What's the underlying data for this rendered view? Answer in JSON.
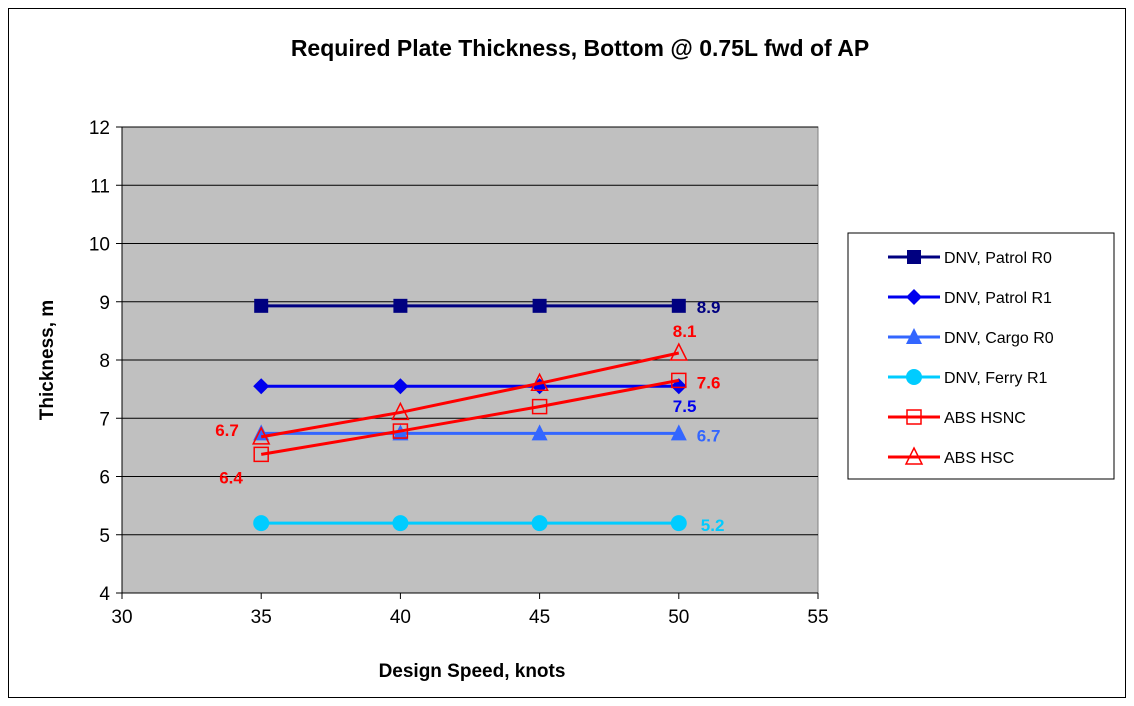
{
  "chart_data": {
    "type": "line",
    "title": "Required Plate Thickness, Bottom @ 0.75L fwd of AP",
    "xlabel": "Design Speed, knots",
    "ylabel": "Thickness, m",
    "xlim": [
      30,
      55
    ],
    "ylim": [
      4,
      12
    ],
    "xticks": [
      30,
      35,
      40,
      45,
      50,
      55
    ],
    "yticks": [
      4,
      5,
      6,
      7,
      8,
      9,
      10,
      11,
      12
    ],
    "grid": "horizontal",
    "plot_background": "#c0c0c0",
    "legend_position": "right",
    "x": [
      35,
      40,
      45,
      50
    ],
    "series": [
      {
        "name": "DNV, Patrol R0",
        "color": "#000080",
        "marker": "square",
        "values": [
          8.93,
          8.93,
          8.93,
          8.93
        ]
      },
      {
        "name": "DNV, Patrol R1",
        "color": "#0000ee",
        "marker": "diamond",
        "values": [
          7.55,
          7.55,
          7.55,
          7.55
        ]
      },
      {
        "name": "DNV, Cargo R0",
        "color": "#3366ff",
        "marker": "triangle",
        "values": [
          6.74,
          6.74,
          6.74,
          6.74
        ]
      },
      {
        "name": "DNV, Ferry R1",
        "color": "#00ccff",
        "marker": "circle",
        "values": [
          5.2,
          5.2,
          5.2,
          5.2
        ]
      },
      {
        "name": "ABS HSNC",
        "color": "#ff0000",
        "marker": "open-square",
        "values": [
          6.38,
          6.78,
          7.2,
          7.65
        ]
      },
      {
        "name": "ABS HSC",
        "color": "#ff0000",
        "marker": "open-triangle",
        "values": [
          6.68,
          7.1,
          7.6,
          8.12
        ]
      }
    ],
    "annotations": [
      {
        "text": "8.9",
        "color": "#000080",
        "x": 50,
        "y": 8.93
      },
      {
        "text": "7.5",
        "color": "#0000ee",
        "x": 50,
        "y": 7.55
      },
      {
        "text": "6.7",
        "color": "#3366ff",
        "x": 50,
        "y": 6.74
      },
      {
        "text": "5.2",
        "color": "#00ccff",
        "x": 50,
        "y": 5.2
      },
      {
        "text": "7.6",
        "color": "#ff0000",
        "x": 50,
        "y": 7.65
      },
      {
        "text": "8.1",
        "color": "#ff0000",
        "x": 50,
        "y": 8.12
      },
      {
        "text": "6.7",
        "color": "#ff0000",
        "x": 35,
        "y": 6.68
      },
      {
        "text": "6.4",
        "color": "#ff0000",
        "x": 35,
        "y": 6.38
      }
    ]
  }
}
